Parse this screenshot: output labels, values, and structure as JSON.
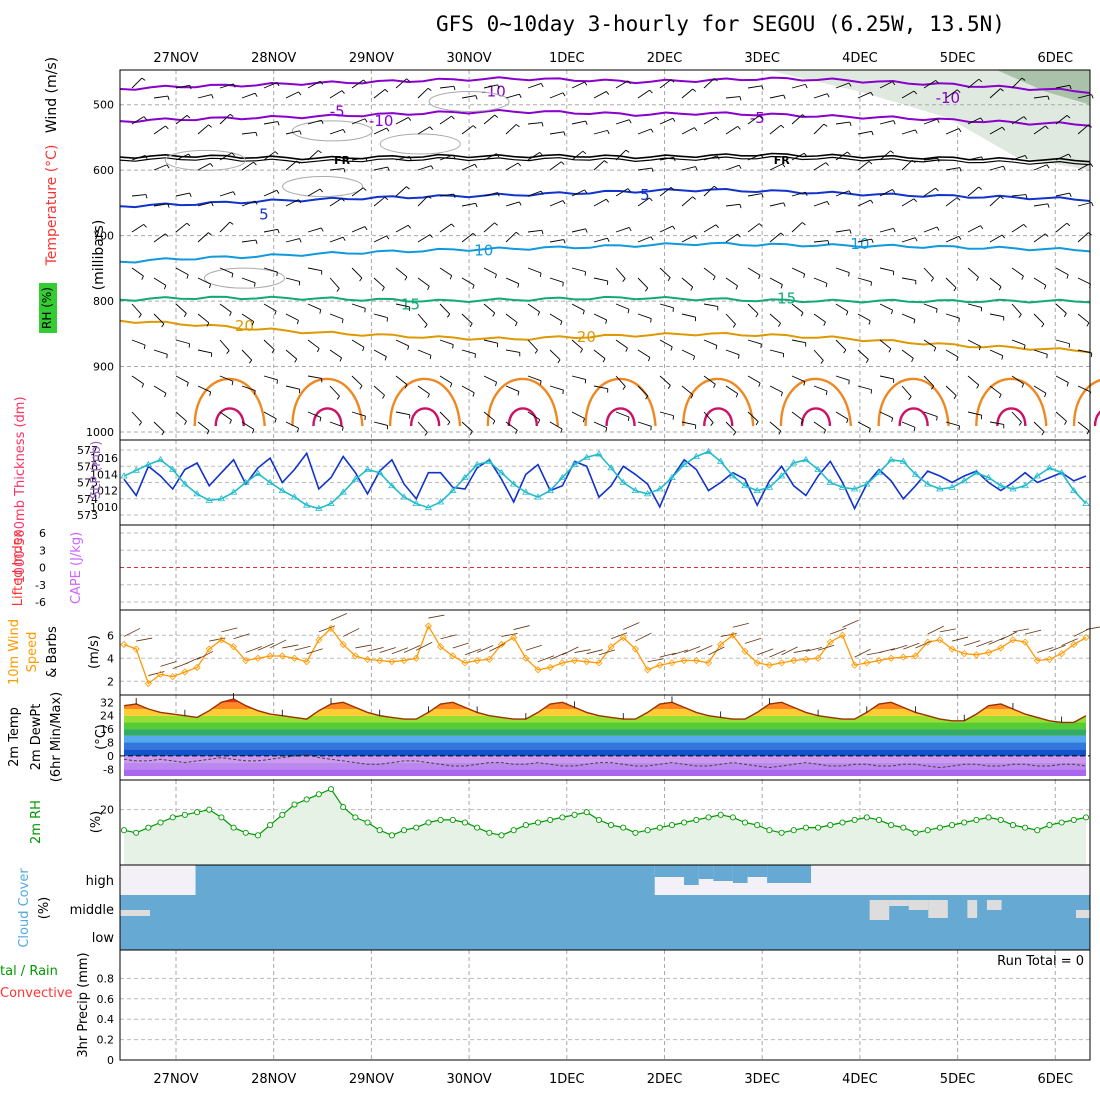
{
  "title": "GFS 0~10day 3-hourly for SEGOU (6.25W, 13.5N)",
  "dates": [
    "27NOV",
    "28NOV",
    "29NOV",
    "30NOV",
    "1DEC",
    "2DEC",
    "3DEC",
    "4DEC",
    "5DEC",
    "6DEC"
  ],
  "panels": {
    "upper": {
      "ylabel_wind": "Wind (m/s)",
      "ylabel_temp": "Temperature (°C)",
      "ylabel_rh": "RH (%)",
      "ylabel_mb": "(millibars)",
      "colors": {
        "wind": "#000000",
        "temp": "#ff3333",
        "rh": "#00cc00",
        "mb": "#000000"
      }
    },
    "thickness": {
      "ylabel_thick": "1000-500mb Thickness (dm)",
      "ylabel_slp": "SLP (mb)",
      "colors": {
        "thick": "#ff3366",
        "slp": "#9966cc",
        "thick_line": "#1133cc",
        "slp_line": "#22bbcc"
      }
    },
    "cape": {
      "ylabel_li": "Lifted Index",
      "ylabel_cape": "CAPE (J/kg)",
      "colors": {
        "li": "#ff3333",
        "cape": "#cc66ff"
      }
    },
    "wind10": {
      "ylabel1": "10m Wind",
      "ylabel2": "Speed",
      "ylabel3": "& Barbs",
      "ylabel_unit": "(m/s)",
      "colors": {
        "w1": "#ff9900",
        "w2": "#cc6600"
      }
    },
    "temp2m": {
      "ylabel1": "2m Temp",
      "ylabel2": "2m DewPt",
      "ylabel3": "(6hr Min/Max)",
      "ylabel_unit": "(°C)"
    },
    "rh2m": {
      "ylabel": "2m RH",
      "ylabel_unit": "(%)",
      "color": "#009900"
    },
    "cloud": {
      "ylabel": "Cloud Cover",
      "ylabel_unit": "(%)",
      "levels": [
        "high",
        "middle",
        "low"
      ],
      "color": "#55aadd"
    },
    "precip": {
      "ylabel1": "tal / Rain",
      "ylabel2": "Convective",
      "ylabel3": "3hr Precip (mm)",
      "run_total": "Run Total = 0",
      "colors": {
        "rain": "#009900",
        "conv": "#ff3333"
      }
    }
  },
  "chart_data": [
    {
      "type": "line",
      "name": "upper-air",
      "y_axis": "pressure (mb)",
      "yticks": [
        500,
        600,
        700,
        800,
        900,
        1000
      ],
      "ylim": [
        1000,
        450
      ],
      "grid": true,
      "contours": [
        {
          "label": "-10",
          "color": "#8800cc",
          "mb": [
            476,
            472,
            470,
            467,
            465,
            462,
            460,
            462,
            465,
            463,
            460,
            462,
            466,
            470,
            475,
            480
          ]
        },
        {
          "label": "-5",
          "color": "#8800cc",
          "mb": [
            525,
            522,
            520,
            518,
            515,
            512,
            510,
            512,
            515,
            513,
            515,
            518,
            520,
            524,
            528,
            530
          ]
        },
        {
          "label": "FR",
          "color": "#000000",
          "mb": [
            580,
            578,
            580,
            582,
            580,
            578,
            579,
            578,
            580,
            578,
            576,
            578,
            580,
            582,
            584,
            585
          ]
        },
        {
          "label": "5",
          "color": "#1133cc",
          "mb": [
            655,
            652,
            648,
            645,
            642,
            640,
            638,
            635,
            632,
            630,
            632,
            635,
            638,
            640,
            642,
            645
          ]
        },
        {
          "label": "10",
          "color": "#1199dd",
          "mb": [
            740,
            735,
            732,
            728,
            725,
            722,
            720,
            718,
            715,
            712,
            714,
            715,
            716,
            718,
            720,
            722
          ]
        },
        {
          "label": "15",
          "color": "#11aa77",
          "mb": [
            798,
            795,
            795,
            796,
            798,
            800,
            798,
            796,
            795,
            797,
            799,
            800,
            800,
            800,
            800,
            800
          ]
        },
        {
          "label": "20",
          "color": "#dd9900",
          "mb": [
            830,
            835,
            842,
            848,
            852,
            856,
            858,
            855,
            852,
            850,
            852,
            856,
            862,
            868,
            872,
            876
          ]
        }
      ],
      "contour_labels": [
        {
          "text": "-10",
          "day": 3.3,
          "mb": 480
        },
        {
          "text": "-10",
          "day": 7.95,
          "mb": 490
        },
        {
          "text": "-5",
          "day": 1.7,
          "mb": 510
        },
        {
          "text": "-5",
          "day": 6.0,
          "mb": 520
        },
        {
          "text": "-10",
          "day": 2.15,
          "mb": 525
        },
        {
          "text": "FR",
          "day": 1.75,
          "mb": 583
        },
        {
          "text": "FR",
          "day": 6.25,
          "mb": 583
        },
        {
          "text": "5",
          "day": 0.95,
          "mb": 668
        },
        {
          "text": "5",
          "day": 4.85,
          "mb": 638
        },
        {
          "text": "10",
          "day": 3.2,
          "mb": 723
        },
        {
          "text": "10",
          "day": 7.05,
          "mb": 713
        },
        {
          "text": "15",
          "day": 2.45,
          "mb": 805
        },
        {
          "text": "15",
          "day": 6.3,
          "mb": 796
        },
        {
          "text": "20",
          "day": 0.75,
          "mb": 838
        },
        {
          "text": "20",
          "day": 4.25,
          "mb": 855
        }
      ]
    },
    {
      "type": "line",
      "name": "thickness-slp",
      "left_yticks": [
        573,
        574,
        575,
        576,
        577
      ],
      "right_yticks": [
        1010,
        1012,
        1014,
        1016
      ],
      "series": [
        {
          "name": "1000-500mb Thickness",
          "color": "#1133cc",
          "axis": "left",
          "values": [
            575.2,
            574.2,
            576.0,
            575.4,
            574.6,
            575.8,
            576.2,
            574.8,
            575.6,
            576.4,
            574.9,
            575.9,
            576.5,
            575.0,
            575.8,
            576.8,
            574.6,
            575.3,
            576.6,
            575.6,
            574.3,
            575.7,
            576.4,
            574.9,
            574.0,
            575.6,
            575.6,
            574.7,
            574.6,
            575.9,
            576.4,
            575.2,
            573.8,
            575.5,
            576.1,
            574.5,
            574.8,
            576.3,
            576.0,
            574.1,
            574.8,
            576.0,
            575.5,
            574.9,
            573.5,
            575.3,
            576.4,
            575.8,
            574.5,
            575.0,
            575.6,
            575.2,
            573.6,
            575.1,
            576.0,
            574.8,
            574.2,
            575.4,
            576.3,
            575.0,
            573.4,
            574.9,
            575.8,
            575.1,
            574.0,
            574.8,
            575.7,
            575.4,
            575.0,
            575.4,
            575.7,
            575.0,
            574.5,
            575.0,
            575.6,
            575.0,
            575.3,
            575.6,
            575.1,
            575.4
          ]
        },
        {
          "name": "SLP",
          "color": "#22bbcc",
          "axis": "right",
          "values": [
            1013.8,
            1014.5,
            1015.2,
            1015.8,
            1014.6,
            1012.8,
            1011.6,
            1010.8,
            1011.0,
            1011.8,
            1013.0,
            1014.1,
            1013.0,
            1012.0,
            1011.2,
            1010.2,
            1009.8,
            1010.4,
            1011.8,
            1013.4,
            1014.6,
            1014.2,
            1012.6,
            1011.2,
            1010.4,
            1009.9,
            1010.6,
            1012.0,
            1013.6,
            1015.2,
            1015.6,
            1014.2,
            1012.8,
            1011.8,
            1011.2,
            1012.0,
            1013.6,
            1015.2,
            1016.1,
            1016.5,
            1014.8,
            1013.0,
            1012.0,
            1011.6,
            1012.2,
            1013.6,
            1015.2,
            1016.2,
            1016.8,
            1015.6,
            1013.8,
            1012.6,
            1012.0,
            1012.4,
            1013.8,
            1015.4,
            1015.8,
            1014.6,
            1013.0,
            1012.4,
            1012.2,
            1012.8,
            1014.2,
            1015.8,
            1015.6,
            1014.0,
            1012.8,
            1012.2,
            1012.4,
            1013.2,
            1014.2,
            1013.6,
            1012.6,
            1012.2,
            1012.6,
            1013.8,
            1014.8,
            1014.2,
            1012.0,
            1010.4
          ]
        }
      ]
    },
    {
      "type": "line",
      "name": "lifted-index-cape",
      "yticks_left": [
        6,
        3,
        0,
        -3,
        -6
      ],
      "series": []
    },
    {
      "type": "line",
      "name": "10m-wind",
      "yticks": [
        2,
        4,
        6
      ],
      "ylim": [
        1.5,
        7.5
      ],
      "series": [
        {
          "name": "10m Wind Speed",
          "color": "#ff9900",
          "values": [
            5.2,
            4.8,
            1.8,
            2.6,
            2.4,
            2.8,
            3.2,
            4.8,
            5.6,
            5.0,
            3.8,
            4.0,
            4.2,
            4.2,
            4.0,
            3.7,
            5.6,
            6.6,
            5.2,
            4.2,
            3.9,
            3.8,
            3.7,
            3.8,
            4.0,
            6.8,
            5.0,
            4.2,
            3.6,
            3.8,
            3.9,
            5.2,
            5.8,
            4.0,
            3.0,
            3.2,
            3.6,
            3.8,
            3.7,
            3.6,
            5.0,
            5.8,
            4.8,
            3.0,
            3.4,
            3.6,
            3.8,
            3.8,
            3.6,
            5.2,
            6.0,
            4.6,
            3.6,
            3.4,
            3.6,
            3.8,
            3.9,
            4.0,
            5.4,
            6.0,
            3.4,
            3.6,
            3.8,
            4.0,
            4.1,
            4.2,
            5.4,
            5.6,
            4.8,
            4.4,
            4.3,
            4.5,
            4.9,
            5.6,
            5.4,
            3.8,
            3.9,
            4.4,
            5.2,
            5.8
          ]
        }
      ]
    },
    {
      "type": "area",
      "name": "2m-temp",
      "yticks": [
        -8,
        0,
        8,
        16,
        24,
        32
      ],
      "ylim": [
        -12,
        34
      ],
      "series": [
        {
          "name": "2m Temp",
          "color": "#993300",
          "values": [
            30,
            31,
            28,
            26,
            25,
            24,
            23,
            27,
            32,
            34,
            30,
            27,
            25,
            24,
            23,
            22,
            27,
            31,
            32,
            29,
            26,
            24,
            23,
            22,
            22,
            26,
            31,
            32,
            29,
            26,
            24,
            23,
            22,
            22,
            26,
            31,
            32,
            29,
            26,
            24,
            23,
            22,
            22,
            26,
            31,
            32,
            29,
            26,
            24,
            23,
            22,
            22,
            26,
            31,
            32,
            29,
            26,
            24,
            23,
            22,
            22,
            26,
            31,
            32,
            29,
            26,
            24,
            22,
            21,
            21,
            25,
            30,
            31,
            28,
            25,
            23,
            21,
            20,
            20,
            24
          ]
        },
        {
          "name": "2m DewPt",
          "color": "#555555",
          "values": [
            -2,
            -3,
            -3,
            -2,
            -3,
            -4,
            -3,
            -2,
            -1,
            -2,
            -3,
            -3,
            -2,
            -1,
            0,
            1,
            -1,
            -2,
            -3,
            -4,
            -5,
            -5,
            -4,
            -3,
            -3,
            -4,
            -5,
            -6,
            -6,
            -5,
            -4,
            -4,
            -5,
            -5,
            -4,
            -5,
            -6,
            -6,
            -5,
            -4,
            -4,
            -5,
            -6,
            -6,
            -5,
            -4,
            -5,
            -6,
            -6,
            -5,
            -4,
            -5,
            -6,
            -7,
            -6,
            -5,
            -4,
            -5,
            -6,
            -6,
            -5,
            -5,
            -6,
            -6,
            -5,
            -5,
            -6,
            -7,
            -6,
            -5,
            -5,
            -6,
            -6,
            -5,
            -5,
            -6,
            -6,
            -5,
            -5,
            -6
          ]
        }
      ]
    },
    {
      "type": "area",
      "name": "2m-rh",
      "yticks": [
        20
      ],
      "ylim": [
        0,
        30
      ],
      "series": [
        {
          "name": "2m RH",
          "color": "#009900",
          "values": [
            12,
            11,
            13,
            15,
            17,
            18,
            19,
            20,
            17,
            13,
            11,
            10,
            14,
            18,
            22,
            24,
            26,
            28,
            21,
            17,
            15,
            12,
            10,
            12,
            13,
            15,
            16,
            16,
            15,
            13,
            11,
            10,
            12,
            14,
            15,
            16,
            17,
            18,
            19,
            16,
            14,
            13,
            11,
            12,
            13,
            14,
            15,
            16,
            17,
            18,
            17,
            15,
            14,
            12,
            11,
            12,
            13,
            13,
            14,
            15,
            16,
            17,
            16,
            14,
            13,
            11,
            12,
            13,
            14,
            15,
            16,
            17,
            16,
            14,
            13,
            12,
            14,
            15,
            16,
            17
          ]
        }
      ]
    },
    {
      "type": "bar",
      "name": "cloud-cover",
      "levels": [
        "high",
        "middle",
        "low"
      ],
      "series": []
    },
    {
      "type": "bar",
      "name": "3hr-precip",
      "yticks": [
        0,
        0.2,
        0.4,
        0.6,
        0.8
      ],
      "ylim": [
        0,
        1.0
      ],
      "series": [
        {
          "name": "Total / Rain",
          "color": "#009900",
          "values": []
        },
        {
          "name": "Convective",
          "color": "#ff3333",
          "values": []
        }
      ]
    }
  ]
}
